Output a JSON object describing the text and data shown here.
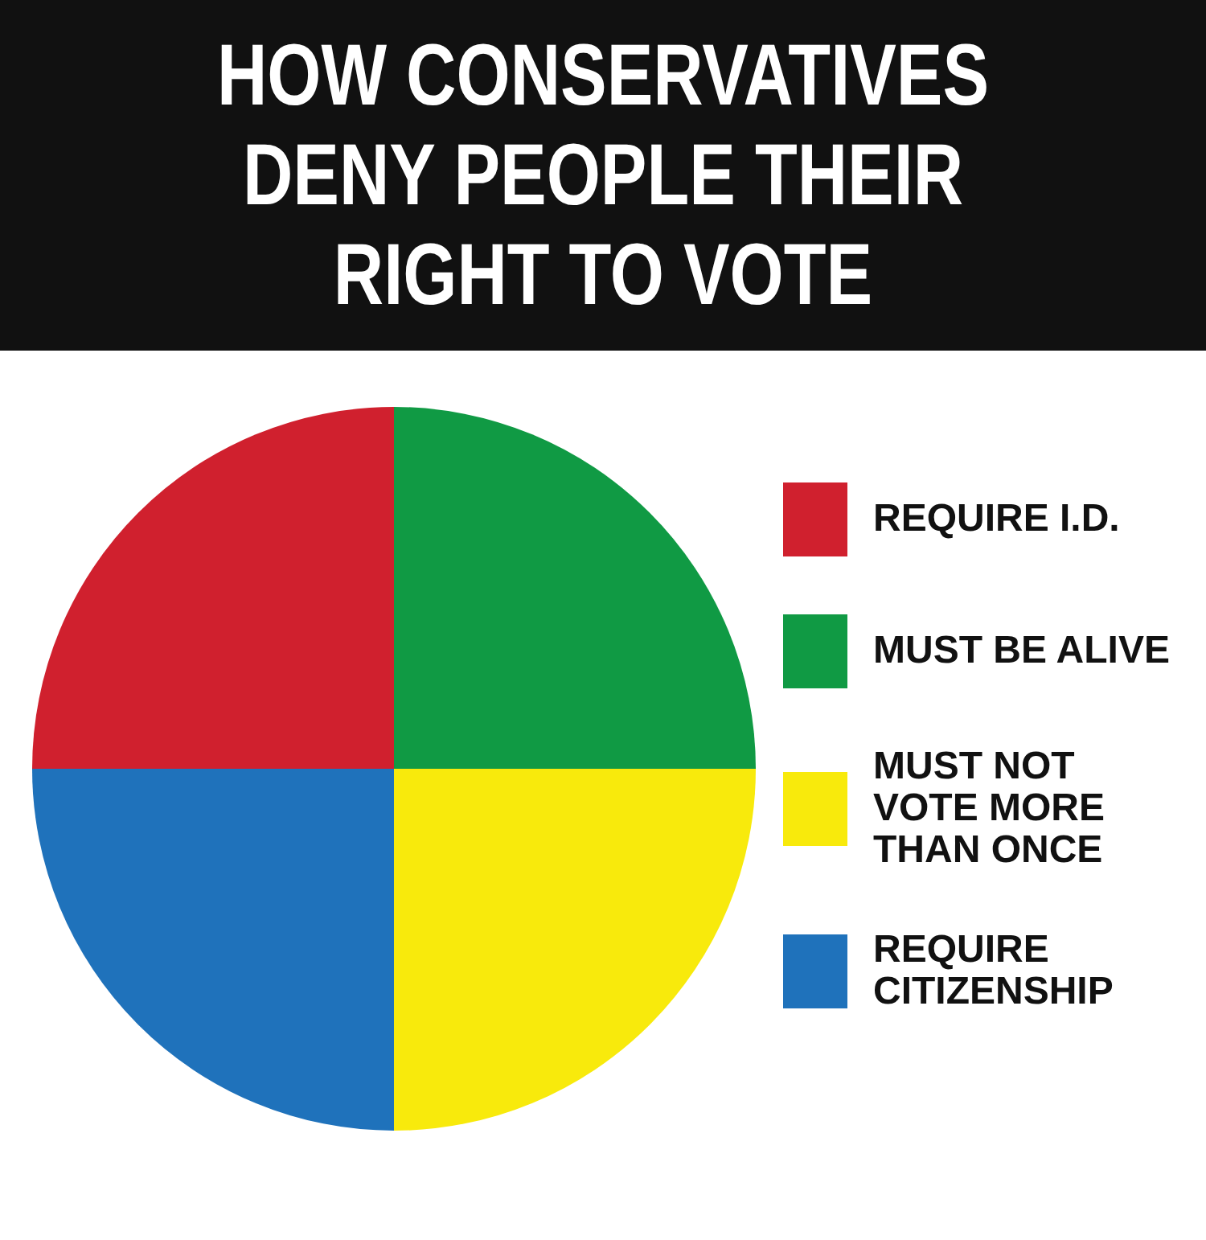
{
  "chart_data": {
    "type": "pie",
    "title": "HOW CONSERVATIVES DENY PEOPLE THEIR RIGHT TO VOTE",
    "categories": [
      "REQUIRE I.D.",
      "MUST BE ALIVE",
      "MUST NOT VOTE MORE THAN ONCE",
      "REQUIRE CITIZENSHIP"
    ],
    "values": [
      25,
      25,
      25,
      25
    ],
    "colors": [
      "#d0202e",
      "#109a44",
      "#f8ea0c",
      "#1f72bb"
    ],
    "legend": "right"
  }
}
